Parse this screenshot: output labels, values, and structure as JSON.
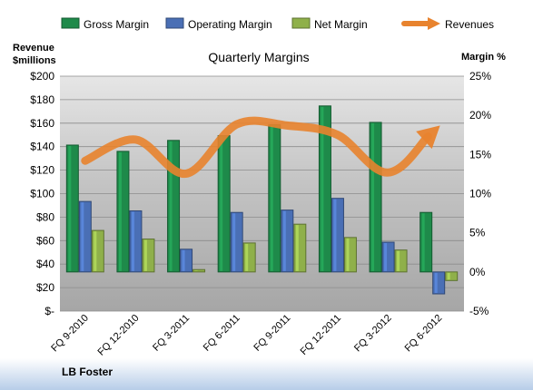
{
  "chart_data": {
    "type": "bar",
    "title": "Quarterly Margins",
    "footer_label": "LB Foster",
    "left_axis": {
      "label_line1": "Revenue",
      "label_line2": "$millions",
      "ticks": [
        "$200",
        "$180",
        "$160",
        "$140",
        "$120",
        "$100",
        "$80",
        "$60",
        "$40",
        "$20",
        "$-"
      ],
      "ylim": [
        0,
        200
      ]
    },
    "right_axis": {
      "label": "Margin %",
      "ticks": [
        "25%",
        "20%",
        "15%",
        "10%",
        "5%",
        "0%",
        "-5%"
      ],
      "ylim": [
        -5,
        25
      ]
    },
    "categories": [
      "FQ 9-2010",
      "FQ 12-2010",
      "FQ 3-2011",
      "FQ 6-2011",
      "FQ 9-2011",
      "FQ 12-2011",
      "FQ 3-2012",
      "FQ 6-2012"
    ],
    "series": [
      {
        "name": "Gross Margin",
        "axis": "right",
        "kind": "bar",
        "color": "#1e8a4a",
        "values": [
          16.2,
          15.4,
          16.8,
          17.4,
          18.8,
          21.2,
          19.1,
          7.6
        ]
      },
      {
        "name": "Operating Margin",
        "axis": "right",
        "kind": "bar",
        "color": "#4a6fb5",
        "values": [
          9.0,
          7.8,
          2.9,
          7.6,
          7.9,
          9.4,
          3.8,
          -2.8
        ]
      },
      {
        "name": "Net Margin",
        "axis": "right",
        "kind": "bar",
        "color": "#8fb04a",
        "values": [
          5.3,
          4.2,
          0.3,
          3.7,
          6.1,
          4.4,
          2.8,
          -1.1
        ]
      },
      {
        "name": "Revenues",
        "axis": "left",
        "kind": "line",
        "color": "#e8832e",
        "values": [
          128,
          146,
          117,
          159,
          158,
          150,
          118,
          157
        ]
      }
    ],
    "legend_position": "top",
    "grid": true
  }
}
